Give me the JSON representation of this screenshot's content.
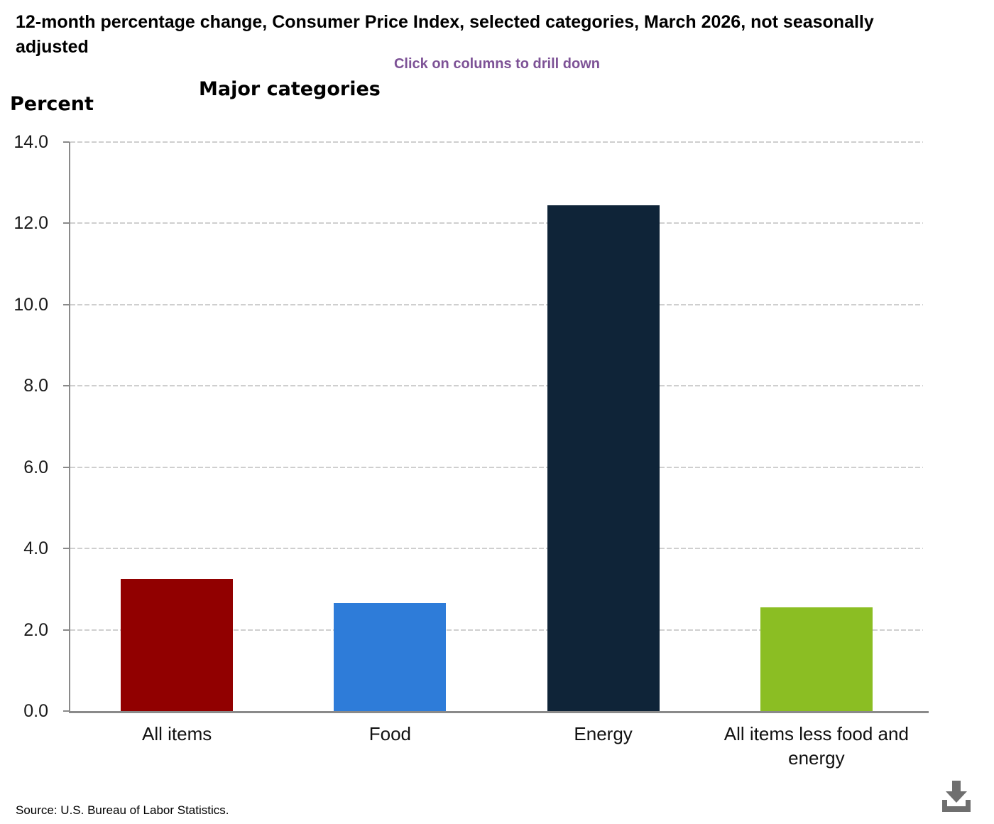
{
  "header": {
    "title": "12-month percentage change, Consumer Price Index, selected categories, March 2026, not seasonally adjusted",
    "subtitle": "Click on columns to drill down"
  },
  "chart": {
    "heading": "Major categories",
    "y_axis_title": "Percent"
  },
  "chart_data": {
    "type": "bar",
    "title": "Major categories",
    "xlabel": "",
    "ylabel": "Percent",
    "categories": [
      "All items",
      "Food",
      "Energy",
      "All items less food and energy"
    ],
    "values": [
      3.25,
      2.65,
      12.45,
      2.55
    ],
    "bar_colors": [
      "#910000",
      "#2e7cd9",
      "#0f2438",
      "#8bbe23"
    ],
    "ylim": [
      0,
      14
    ],
    "yticks": [
      0,
      2,
      4,
      6,
      8,
      10,
      12,
      14
    ],
    "ytick_labels": [
      "0.0",
      "2.0",
      "4.0",
      "6.0",
      "8.0",
      "10.0",
      "12.0",
      "14.0"
    ],
    "grid": "horizontal-dashed",
    "legend": "none"
  },
  "footer": {
    "source": "Source: U.S. Bureau of Labor Statistics.",
    "download_icon": "download-icon"
  },
  "colors": {
    "subtitle_purple": "#7d5296",
    "axis_gray": "#8a8a8a",
    "gridline_gray": "#cfcfcf",
    "icon_gray": "#6f6f6f"
  }
}
